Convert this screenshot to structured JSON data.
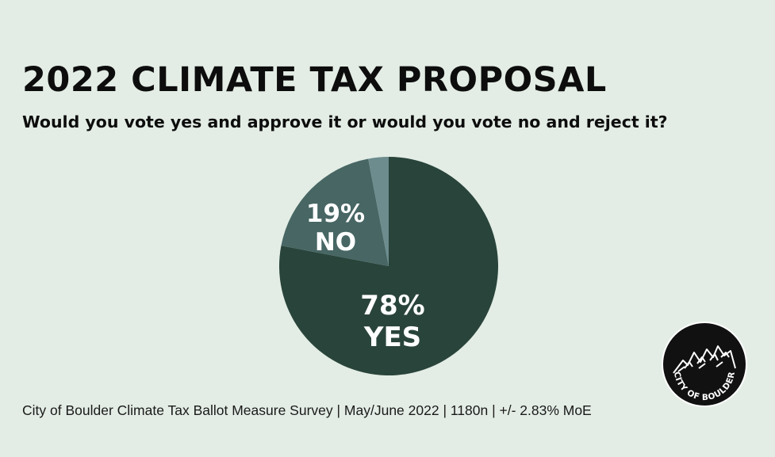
{
  "title": "2022 CLIMATE TAX PROPOSAL",
  "subtitle": "Would you vote yes and approve it or would you vote no and reject it?",
  "footer": "City of Boulder Climate Tax Ballot Measure Survey | May/June 2022 | 1180n | +/- 2.83% MoE",
  "logo": {
    "text": "CITY OF BOULDER",
    "icon": "mountain-flatirons-icon"
  },
  "chart_data": {
    "type": "pie",
    "title": "2022 CLIMATE TAX PROPOSAL",
    "subtitle": "Would you vote yes and approve it or would you vote no and reject it?",
    "start": "top",
    "direction": "clockwise",
    "slices": [
      {
        "label": "YES",
        "value": 78,
        "value_label": "78%",
        "color": "#29443b"
      },
      {
        "label": "NO",
        "value": 19,
        "value_label": "19%",
        "color": "#476664"
      },
      {
        "label": "",
        "value": 3,
        "value_label": "",
        "color": "#6c8c8e"
      }
    ]
  },
  "colors": {
    "background": "#e3ede5",
    "text": "#0d0d0d",
    "logo": "#111111"
  }
}
